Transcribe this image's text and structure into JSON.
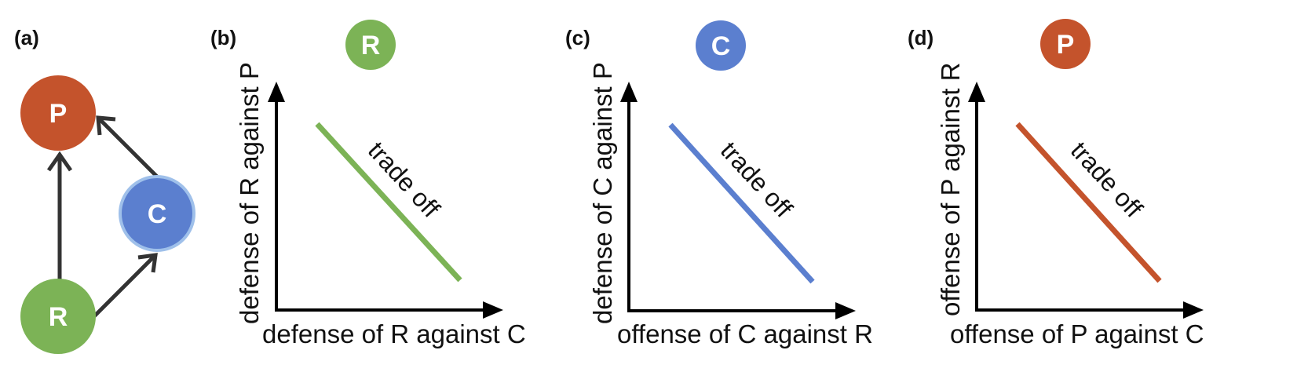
{
  "colors": {
    "R": "#7cb356",
    "C": "#5b7fcf",
    "P": "#c4532c",
    "arrow": "#333333",
    "axis": "#000000"
  },
  "panel_a": {
    "label": "(a)",
    "nodes": {
      "P": "P",
      "C": "C",
      "R": "R"
    }
  },
  "panel_b": {
    "label": "(b)",
    "node": "R",
    "ylabel": "defense of R against P",
    "xlabel": "defense of R against C",
    "tradeoff": "trade off"
  },
  "panel_c": {
    "label": "(c)",
    "node": "C",
    "ylabel": "defense of C against P",
    "xlabel": "offense of C against R",
    "tradeoff": "trade off"
  },
  "panel_d": {
    "label": "(d)",
    "node": "P",
    "ylabel": "offense of P against R",
    "xlabel": "offense of P against C",
    "tradeoff": "trade off"
  }
}
